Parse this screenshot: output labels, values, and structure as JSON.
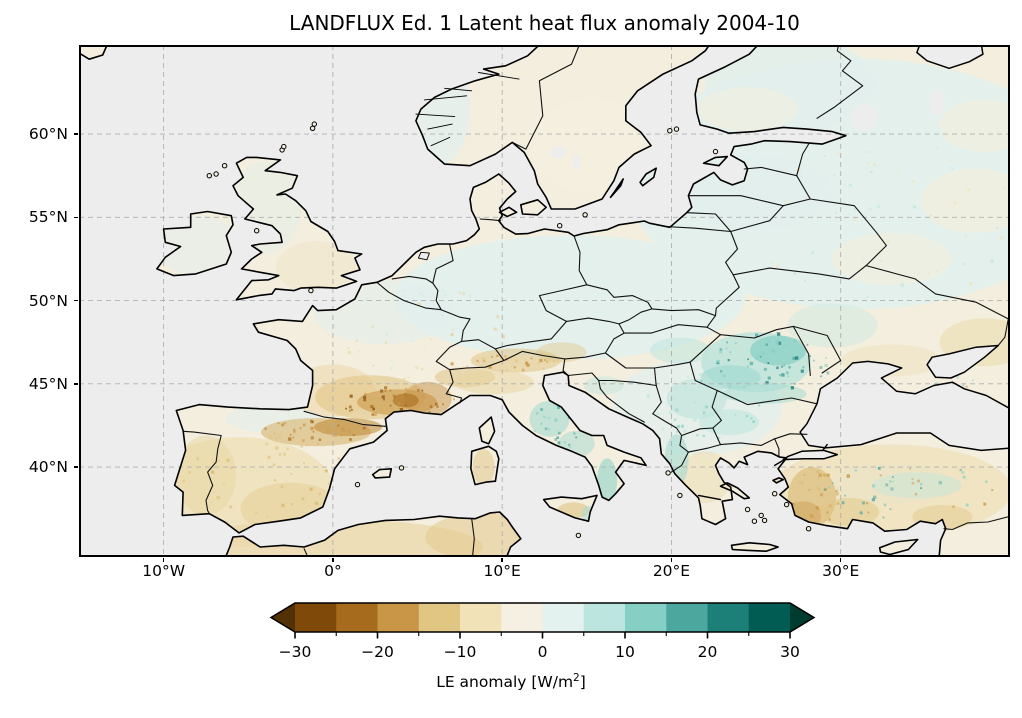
{
  "figure": {
    "title": "LANDFLUX Ed. 1 Latent heat flux anomaly 2004-10"
  },
  "map": {
    "projection": "equirectangular",
    "region": "Europe",
    "extent": {
      "lon_min": -15,
      "lon_max": 40,
      "lat_min": 34.6,
      "lat_max": 65.35
    },
    "x_axis": {
      "tick_labels": [
        "10°W",
        "0°",
        "10°E",
        "20°E",
        "30°E"
      ],
      "tick_lons": [
        -10,
        0,
        10,
        20,
        30
      ]
    },
    "y_axis": {
      "tick_labels": [
        "60°N",
        "55°N",
        "50°N",
        "45°N",
        "40°N"
      ],
      "tick_lats": [
        60,
        55,
        50,
        45,
        40
      ]
    },
    "gridlines": {
      "lons": [
        -10,
        0,
        10,
        20,
        30
      ],
      "lats": [
        40,
        45,
        50,
        55,
        60
      ],
      "style": "dashed"
    }
  },
  "colorbar": {
    "label_text": "LE anomaly [W/m²]",
    "label_prefix": "LE anomaly [W/m",
    "label_sup": "2",
    "label_suffix": "]",
    "tick_labels": [
      "−30",
      "−20",
      "−10",
      "0",
      "10",
      "20",
      "30"
    ],
    "tick_values": [
      -30,
      -20,
      -10,
      0,
      10,
      20,
      30
    ],
    "levels": [
      -30,
      -25,
      -20,
      -15,
      -10,
      -5,
      0,
      5,
      10,
      15,
      20,
      25,
      30
    ],
    "segment_colors": [
      "#7f4909",
      "#a76b1d",
      "#c99546",
      "#e1c582",
      "#f2e2b8",
      "#f5f0e2",
      "#e3f1ef",
      "#bce5df",
      "#85cfc4",
      "#4ca89e",
      "#1d8078",
      "#015c53"
    ],
    "under_color": "#543005",
    "over_color": "#003c30",
    "extend": "both",
    "units": "W/m²"
  },
  "colors": {
    "background": "#ffffff",
    "ocean": "#ededed",
    "land": "#f3eedd",
    "land_aqua": "#e2efec",
    "coastline": "#000000",
    "border": "#111111",
    "gridline": "#b0b0b0",
    "frame": "#000000"
  },
  "chart_data": {
    "type": "map",
    "title": "LANDFLUX Ed. 1 Latent heat flux anomaly 2004-10",
    "dataset": "LANDFLUX Ed. 1",
    "variable": "Latent heat flux (LE) anomaly",
    "units": "W/m²",
    "period": "2004-10",
    "region": "Europe",
    "extent_lon": [
      -15,
      40
    ],
    "extent_lat": [
      34.6,
      65.35
    ],
    "colorbar_levels": [
      -30,
      -25,
      -20,
      -15,
      -10,
      -5,
      0,
      5,
      10,
      15,
      20,
      25,
      30
    ],
    "colorbar_extend": "both",
    "anomaly_highlights": [
      {
        "region": "Southern France (Languedoc/Provence)",
        "sign": "negative",
        "approx_value_wm2": -15
      },
      {
        "region": "NE Spain / Pyrenees / Ebro",
        "sign": "negative",
        "approx_value_wm2": -12
      },
      {
        "region": "Western Turkey coast",
        "sign": "negative",
        "approx_value_wm2": -10
      },
      {
        "region": "Iberia and North Africa",
        "sign": "slightly negative",
        "approx_value_wm2": -4
      },
      {
        "region": "Romania / Moldova / eastern Balkans",
        "sign": "positive",
        "approx_value_wm2": 8
      },
      {
        "region": "Central and southern Italy",
        "sign": "positive",
        "approx_value_wm2": 7
      },
      {
        "region": "Central and eastern Europe",
        "sign": "slightly positive",
        "approx_value_wm2": 2
      },
      {
        "region": "Most remaining land",
        "sign": "near zero",
        "approx_value_wm2": 0
      }
    ]
  }
}
